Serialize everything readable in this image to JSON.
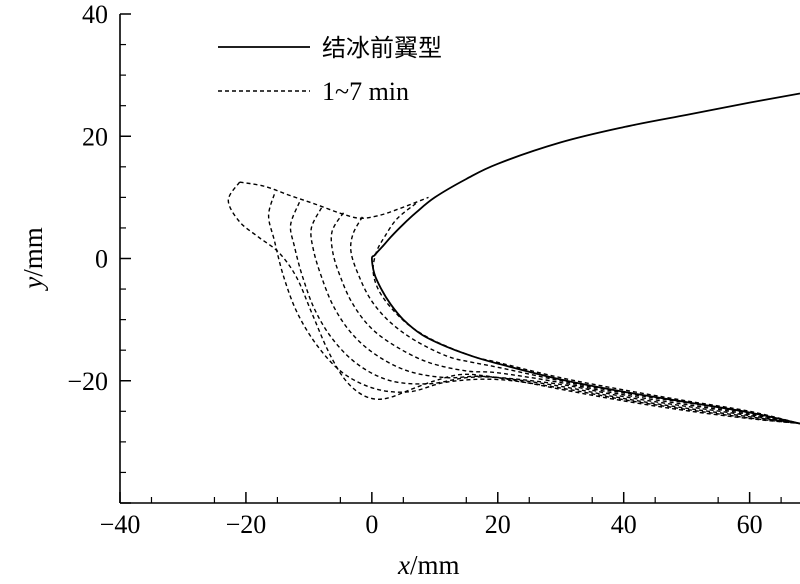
{
  "chart_data": {
    "type": "line",
    "xlabel_italic": "x",
    "xlabel_unit": "/mm",
    "ylabel_italic": "y",
    "ylabel_unit": "/mm",
    "xlim": [
      -40,
      68
    ],
    "ylim": [
      -40,
      40
    ],
    "xticks": [
      -40,
      -20,
      0,
      20,
      40,
      60
    ],
    "yticks": [
      -20,
      0,
      20,
      40
    ],
    "xtick_labels": [
      "−40",
      "−20",
      "0",
      "20",
      "40",
      "60"
    ],
    "ytick_labels": [
      "−20",
      "0",
      "20",
      "40"
    ],
    "grid": false,
    "legend_position": "top-left",
    "series": [
      {
        "name": "结冰前翼型",
        "style": "solid",
        "x": [
          68,
          60,
          50,
          40,
          30,
          20,
          15,
          10,
          7,
          5,
          3,
          2,
          1,
          0.4,
          0,
          0.4,
          1.5,
          3,
          5,
          8,
          12,
          16,
          20,
          30,
          40,
          50,
          60,
          68
        ],
        "y": [
          27,
          25.5,
          23.5,
          21.5,
          19,
          15.5,
          13,
          10,
          7.5,
          5.6,
          3.5,
          2.3,
          1.2,
          0.5,
          0,
          -2.5,
          -5,
          -7.5,
          -10,
          -12.5,
          -14.5,
          -16,
          -17.2,
          -19.8,
          -21.8,
          -23.5,
          -25.2,
          -27
        ]
      },
      {
        "name": "1~7 min",
        "style": "dashed",
        "curves": [
          {
            "x": [
              7,
              4,
              2,
              0.7,
              0.2,
              1,
              3,
              6,
              10,
              16,
              20,
              30,
              40,
              50,
              60,
              68
            ],
            "y": [
              9,
              6.5,
              3.5,
              1,
              -2,
              -5,
              -8,
              -11,
              -13.5,
              -16,
              -17,
              -19.5,
              -21.5,
              -23.3,
              -25,
              -27
            ]
          },
          {
            "x": [
              -1.5,
              -3,
              -3.3,
              -2,
              0,
              3,
              7,
              12,
              16,
              20,
              30,
              40,
              50,
              60,
              68
            ],
            "y": [
              6.8,
              4,
              1,
              -3,
              -7,
              -10.5,
              -13.5,
              -16,
              -17,
              -17.8,
              -20,
              -22,
              -23.6,
              -25.3,
              -27
            ]
          },
          {
            "x": [
              -4.5,
              -6.3,
              -6.2,
              -5,
              -3,
              0,
              4,
              9,
              15,
              20,
              30,
              40,
              50,
              60,
              68
            ],
            "y": [
              7.5,
              4.5,
              1,
              -3,
              -7.5,
              -11.5,
              -14.5,
              -17,
              -18.4,
              -18.7,
              -20.3,
              -22.3,
              -23.9,
              -25.5,
              -27
            ]
          },
          {
            "x": [
              -8,
              -9.6,
              -9.3,
              -8,
              -6,
              -3,
              1,
              6,
              12,
              18,
              30,
              40,
              50,
              60,
              68
            ],
            "y": [
              8.3,
              5,
              1.5,
              -3,
              -8,
              -12.5,
              -16,
              -18.5,
              -19.5,
              -19.3,
              -20.6,
              -22.6,
              -24.2,
              -25.7,
              -27
            ]
          },
          {
            "x": [
              -11.5,
              -12.9,
              -12.3,
              -11,
              -9,
              -6,
              -2,
              3,
              9,
              15,
              20,
              30,
              40,
              50,
              60,
              68
            ],
            "y": [
              9.2,
              5.5,
              2,
              -3,
              -8.5,
              -13.5,
              -17.5,
              -20,
              -20.5,
              -19.5,
              -19.5,
              -20.9,
              -22.9,
              -24.5,
              -25.9,
              -27
            ]
          },
          {
            "x": [
              -15.5,
              -16.4,
              -15.5,
              -14,
              -11.8,
              -8.5,
              -4.5,
              0.5,
              6,
              12,
              20,
              30,
              40,
              50,
              60,
              68
            ],
            "y": [
              10.5,
              7,
              3,
              -3,
              -9,
              -14.5,
              -18.8,
              -21.3,
              -21.8,
              -20.2,
              -19.8,
              -21.2,
              -23.1,
              -24.7,
              -26.1,
              -27
            ]
          },
          {
            "x": [
              -21,
              -22.8,
              -21,
              -18,
              -14.8,
              -12,
              -9.5,
              -7,
              -4.5,
              -2,
              0.5,
              3,
              6,
              10,
              14,
              18,
              24,
              30,
              40,
              50,
              60,
              68
            ],
            "y": [
              12.5,
              9.5,
              6,
              3.5,
              1,
              -3,
              -9,
              -15,
              -19.5,
              -22,
              -23,
              -22.7,
              -21.5,
              -20,
              -19,
              -19.2,
              -20.2,
              -21.4,
              -23.3,
              -24.9,
              -26.2,
              -27
            ]
          }
        ],
        "ridge_x": [
          -21,
          -17,
          -13,
          -9,
          -5,
          -2,
          1,
          4.5,
          9
        ],
        "ridge_y": [
          12.5,
          11.8,
          10.3,
          8.9,
          7.4,
          6.6,
          7,
          8.2,
          10
        ]
      }
    ]
  }
}
